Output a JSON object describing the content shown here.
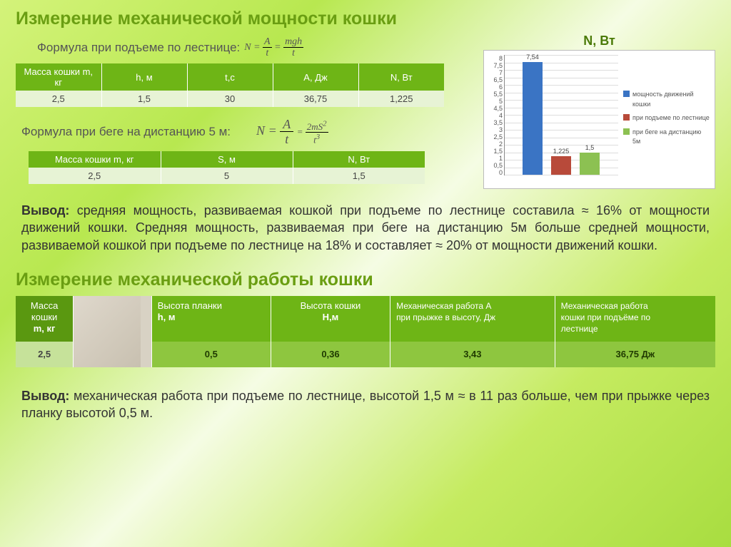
{
  "heading1": "Измерение механической мощности кошки",
  "formula1_label": "Формула при подъеме по лестнице:",
  "formula1_tex": "N = A/t = mgh/t",
  "chart": {
    "title": "N, Вт",
    "ymax": 8,
    "ytick": 0.5,
    "bars": [
      {
        "value": 7.54,
        "label": "7,54",
        "color": "#3a74c4"
      },
      {
        "value": 1.225,
        "label": "1,225",
        "color": "#b84a3a"
      },
      {
        "value": 1.5,
        "label": "1,5",
        "color": "#8cc152"
      }
    ],
    "legend": [
      {
        "color": "#3a74c4",
        "text": "мощность движений кошки"
      },
      {
        "color": "#b84a3a",
        "text": "при подъеме по лестнице"
      },
      {
        "color": "#8cc152",
        "text": "при беге на дистанцию 5м"
      }
    ],
    "yticks": [
      "8",
      "7,5",
      "7",
      "6,5",
      "6",
      "5,5",
      "5",
      "4,5",
      "4",
      "3,5",
      "3",
      "2,5",
      "2",
      "1,5",
      "1",
      "0,5",
      "0"
    ]
  },
  "table1": {
    "headers": [
      "Масса кошки m, кг",
      "h, м",
      "t,с",
      "А, Дж",
      "N, Вт"
    ],
    "row": [
      "2,5",
      "1,5",
      "30",
      "36,75",
      "1,225"
    ]
  },
  "formula2_label": "Формула при беге на дистанцию 5 м:",
  "formula2_tex": "N = A/t = 2mS²/t³",
  "table2": {
    "headers": [
      "Масса кошки m, кг",
      "S, м",
      "N, Вт"
    ],
    "row": [
      "2,5",
      "5",
      "1,5"
    ]
  },
  "conclusion1_b": "Вывод:",
  "conclusion1": " средняя мощность,  развиваемая кошкой при подъеме по лестнице составила ≈ 16%  от мощности движений кошки.  Средняя мощность, развиваемая при беге на дистанцию 5м больше средней мощности,   развиваемой кошкой при подъеме по лестнице на 18% и составляет ≈ 20% от мощности движений кошки.",
  "heading2": "Измерение механической работы кошки",
  "table3": {
    "headers": [
      {
        "l1": "Масса",
        "l2": "кошки",
        "l3": "m, кг"
      },
      {
        "l1": "",
        "l2": "",
        "l3": ""
      },
      {
        "l1": "Высота планки",
        "l2": "h, м",
        "l3": ""
      },
      {
        "l1": "Высота кошки",
        "l2": "   Н,м",
        "l3": ""
      },
      {
        "l1": "Механическая работа А",
        "l2": "при прыжке в высоту, Дж",
        "l3": ""
      },
      {
        "l1": "Механическая работа",
        "l2": "кошки при подъёме по",
        "l3": "лестнице"
      }
    ],
    "row": [
      "2,5",
      "",
      "0,5",
      "0,36",
      "3,43",
      "36,75 Дж"
    ]
  },
  "conclusion2_b": "Вывод:",
  "conclusion2": " механическая работа при подъеме по лестнице, высотой 1,5 м ≈ в 11 раз больше, чем при прыжке через планку высотой 0,5 м."
}
